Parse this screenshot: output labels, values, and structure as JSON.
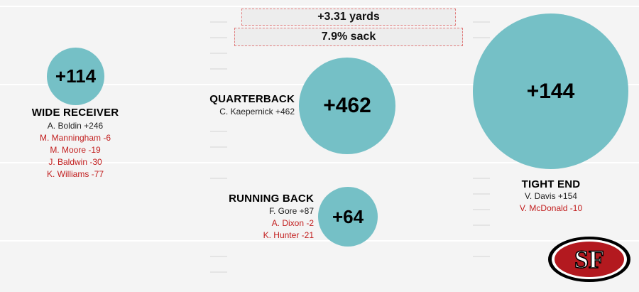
{
  "summary": {
    "yards": "+3.31 yards",
    "sack": "7.9% sack"
  },
  "logo": {
    "text": "SF",
    "name": "49ers-logo"
  },
  "colors": {
    "circle": "#75c0c6",
    "positive_text": "#222222",
    "negative_text": "#c21f1f",
    "background": "#f4f4f4"
  },
  "chart_data": {
    "type": "bubble",
    "groups": [
      {
        "position": "WIDE RECEIVER",
        "total": 114,
        "total_label": "+114",
        "players": [
          {
            "text": "A. Boldin +246",
            "value": 246
          },
          {
            "text": "M. Manningham -6",
            "value": -6
          },
          {
            "text": "M. Moore -19",
            "value": -19
          },
          {
            "text": "J. Baldwin -30",
            "value": -30
          },
          {
            "text": "K. Williams -77",
            "value": -77
          }
        ]
      },
      {
        "position": "QUARTERBACK",
        "total": 462,
        "total_label": "+462",
        "players": [
          {
            "text": "C. Kaepernick +462",
            "value": 462
          }
        ]
      },
      {
        "position": "RUNNING BACK",
        "total": 64,
        "total_label": "+64",
        "players": [
          {
            "text": "F. Gore +87",
            "value": 87
          },
          {
            "text": "A. Dixon -2",
            "value": -2
          },
          {
            "text": "K. Hunter -21",
            "value": -21
          }
        ]
      },
      {
        "position": "TIGHT END",
        "total": 144,
        "total_label": "+144",
        "players": [
          {
            "text": "V. Davis +154",
            "value": 154
          },
          {
            "text": "V. McDonald -10",
            "value": -10
          }
        ]
      }
    ]
  }
}
